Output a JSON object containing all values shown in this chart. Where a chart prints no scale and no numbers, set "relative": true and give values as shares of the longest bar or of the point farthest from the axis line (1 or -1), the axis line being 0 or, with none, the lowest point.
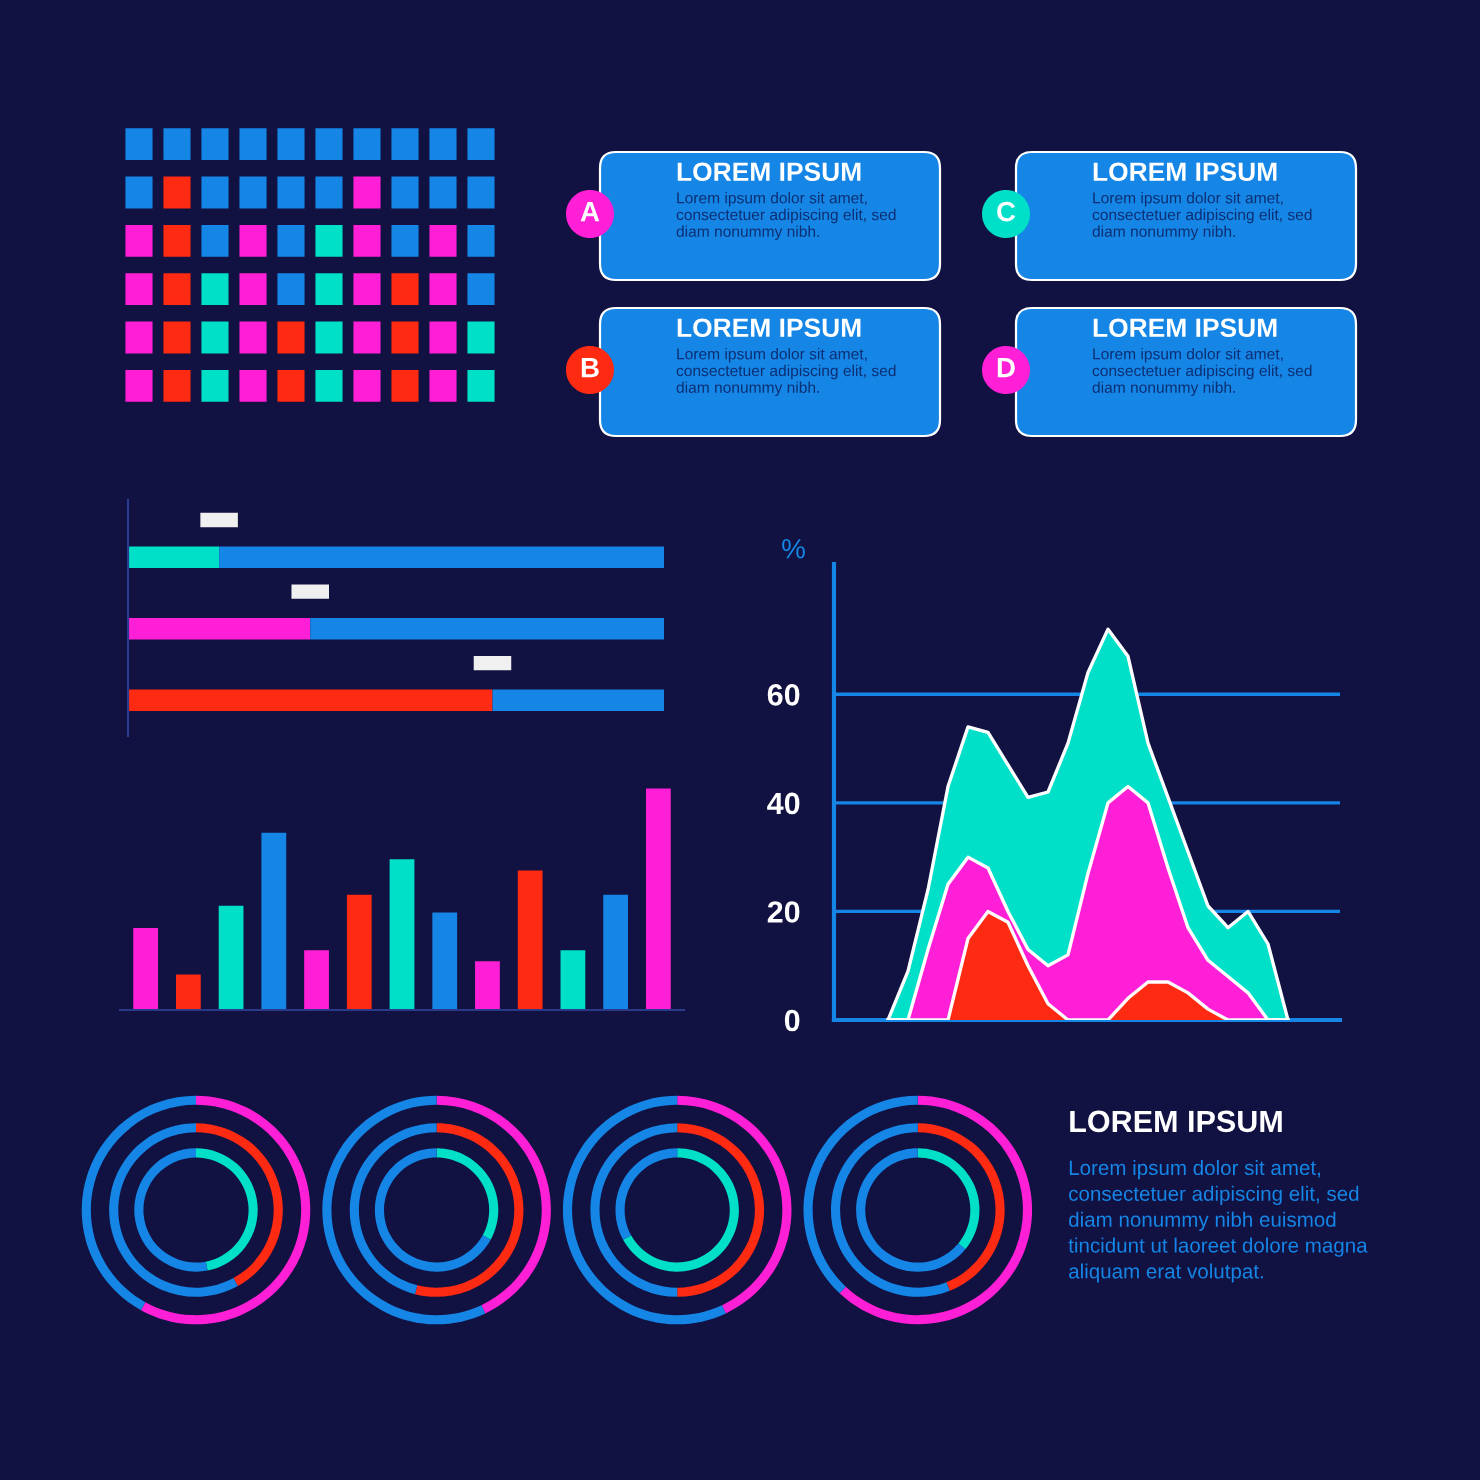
{
  "chart_data": [
    {
      "type": "other",
      "colors": [
        "#ff1fd6",
        "#ff2a12",
        "#00e0c8",
        "#ff1fd6"
      ],
      "annotations": [
        "A",
        "LOREM IPSUM",
        "Lorem ipsum dolor sit amet,\nconsectetuer adipiscing elit, sed\ndiam nonummy nibh.",
        "B",
        "LOREM IPSUM",
        "Lorem ipsum dolor sit amet,\nconsectetuer adipiscing elit, sed\ndiam nonummy nibh.",
        "C",
        "LOREM IPSUM",
        "Lorem ipsum dolor sit amet,\nconsectetuer adipiscing elit, sed\ndiam nonummy nibh.",
        "D",
        "LOREM IPSUM",
        "Lorem ipsum dolor sit amet,\nconsectetuer adipiscing elit, sed\ndiam nonummy nibh."
      ]
    },
    {
      "type": "bar",
      "orientation": "horizontal",
      "stacked": true,
      "relative": true,
      "categories": [
        null,
        null,
        null
      ],
      "series": [
        {
          "colors": [
            "#00e0c8",
            "#ff1fd6",
            "#ff2a12"
          ],
          "values": [
            0.17,
            0.34,
            0.68
          ]
        },
        {
          "color": "#1586e6",
          "values": [
            0.83,
            0.66,
            0.32
          ]
        }
      ]
    },
    {
      "type": "bar",
      "relative": true,
      "categories": [
        null,
        null,
        null,
        null,
        null,
        null,
        null,
        null,
        null,
        null,
        null,
        null,
        null
      ],
      "values": [
        0.37,
        0.16,
        0.47,
        0.8,
        0.27,
        0.52,
        0.68,
        0.44,
        0.22,
        0.63,
        0.27,
        0.52,
        1
      ],
      "colors": [
        "#ff1fd6",
        "#ff2a12",
        "#00e0c8",
        "#1586e6",
        "#ff1fd6",
        "#ff2a12",
        "#00e0c8",
        "#1586e6",
        "#ff1fd6",
        "#ff2a12",
        "#00e0c8",
        "#1586e6",
        "#ff1fd6"
      ]
    },
    {
      "type": "area",
      "ylabel": "%",
      "ylim": [
        0,
        84
      ],
      "yticks": [
        0,
        20,
        40,
        60
      ],
      "grid": "y",
      "tick_labels": "y",
      "categories": [
        null,
        null,
        null,
        null,
        null,
        null,
        null,
        null,
        null,
        null,
        null,
        null,
        null,
        null,
        null,
        null,
        null,
        null,
        null,
        null,
        null
      ],
      "series": [
        {
          "color": "#00e0c8",
          "values": [
            0,
            9,
            24,
            43,
            54,
            53,
            47,
            41,
            42,
            51,
            64,
            72,
            67,
            51,
            41,
            31,
            21,
            17,
            20,
            14,
            0
          ]
        },
        {
          "color": "#ff1fd6",
          "values": [
            0,
            0,
            13,
            25,
            30,
            28,
            20,
            13,
            10,
            12,
            27,
            40,
            43,
            40,
            28,
            17,
            11,
            8,
            5,
            0,
            0
          ]
        },
        {
          "color": "#ff2a12",
          "values": [
            0,
            0,
            0,
            0,
            15,
            20,
            18,
            10,
            3,
            0,
            0,
            0,
            4,
            7,
            7,
            5,
            2,
            0,
            0,
            0,
            0
          ]
        }
      ]
    },
    {
      "type": "donut",
      "series": [
        {
          "colors": [
            "#ff1fd6",
            "#1586e6"
          ],
          "values": [
            58,
            42
          ]
        },
        {
          "colors": [
            "#ff2a12",
            "#1586e6"
          ],
          "values": [
            42,
            58
          ]
        },
        {
          "colors": [
            "#00e0c8",
            "#1586e6"
          ],
          "values": [
            47,
            53
          ]
        }
      ]
    },
    {
      "type": "donut",
      "series": [
        {
          "colors": [
            "#ff1fd6",
            "#1586e6"
          ],
          "values": [
            43,
            57
          ]
        },
        {
          "colors": [
            "#ff2a12",
            "#1586e6"
          ],
          "values": [
            54,
            46
          ]
        },
        {
          "colors": [
            "#00e0c8",
            "#1586e6"
          ],
          "values": [
            33,
            67
          ]
        }
      ]
    },
    {
      "type": "donut",
      "series": [
        {
          "colors": [
            "#ff1fd6",
            "#1586e6"
          ],
          "values": [
            43,
            57
          ]
        },
        {
          "colors": [
            "#ff2a12",
            "#1586e6"
          ],
          "values": [
            50,
            50
          ]
        },
        {
          "colors": [
            "#00e0c8",
            "#1586e6"
          ],
          "values": [
            67,
            33
          ]
        }
      ]
    },
    {
      "type": "donut",
      "series": [
        {
          "colors": [
            "#ff1fd6",
            "#1586e6"
          ],
          "values": [
            62,
            38
          ]
        },
        {
          "colors": [
            "#ff2a12",
            "#1586e6"
          ],
          "values": [
            44,
            56
          ]
        },
        {
          "colors": [
            "#00e0c8",
            "#1586e6"
          ],
          "values": [
            36,
            64
          ]
        }
      ]
    },
    {
      "type": "other",
      "title": "LOREM IPSUM",
      "annotations": [
        "Lorem ipsum dolor sit amet,\nconsectetuer adipiscing elit, sed\ndiam nonummy nibh euismod\ntincidunt ut laoreet dolore magna\naliquam erat volutpat."
      ]
    }
  ]
}
